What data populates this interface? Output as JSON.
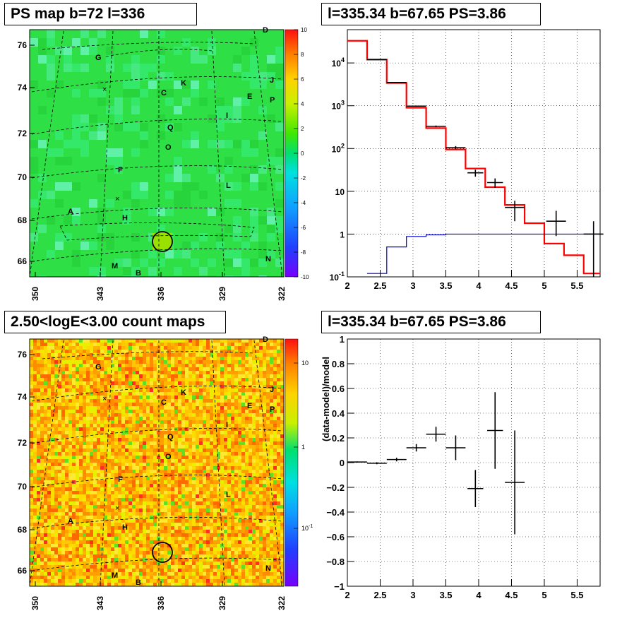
{
  "panels": {
    "map1_title": "PS map b=72 l=336",
    "spec_title": "l=335.34 b=67.65 PS=3.86",
    "map2_title": "2.50<logE<3.00 count maps",
    "resid_title": "l=335.34 b=67.65 PS=3.86"
  },
  "chart_data": [
    {
      "type": "heatmap",
      "title": "PS map b=72 l=336",
      "x_ticks": [
        "350",
        "343",
        "336",
        "329",
        "322"
      ],
      "y_ticks": [
        "76",
        "74",
        "72",
        "70",
        "68",
        "66"
      ],
      "colorbar_ticks": [
        "10",
        "8",
        "6",
        "4",
        "2",
        "0",
        "-2",
        "-4",
        "-6",
        "-8",
        "-10"
      ],
      "z_range": [
        -10,
        10
      ],
      "source_labels": [
        "D",
        "G",
        "K",
        "J",
        "C",
        "E",
        "P",
        "I",
        "Q",
        "O",
        "F",
        "L",
        "A",
        "H",
        "M",
        "B",
        "N"
      ]
    },
    {
      "type": "line",
      "title": "l=335.34 b=67.65 PS=3.86",
      "log_y": true,
      "xlim": [
        2,
        5.85
      ],
      "ylim": [
        0.1,
        60000
      ],
      "x_ticks": [
        "2",
        "2.5",
        "3",
        "3.5",
        "4",
        "4.5",
        "5",
        "5.5"
      ],
      "y_ticks": [
        "10^-1",
        "1",
        "10",
        "10^2",
        "10^3",
        "10^4"
      ],
      "series": [
        {
          "style": "histogram",
          "color": "#ff0000",
          "edges": [
            2,
            2.3,
            2.6,
            2.9,
            3.2,
            3.5,
            3.8,
            4.1,
            4.4,
            4.7,
            5.0,
            5.3,
            5.6,
            5.85
          ],
          "values": [
            33000,
            12000,
            3400,
            900,
            300,
            95,
            34,
            12.5,
            4.8,
            1.8,
            0.6,
            0.32,
            0.12
          ]
        },
        {
          "style": "histogram",
          "color": "#0000cc",
          "edges": [
            2.3,
            2.6,
            2.9,
            3.2,
            3.5,
            3.8,
            4.1,
            4.4,
            4.7,
            5.0,
            5.3,
            5.6,
            5.85
          ],
          "values": [
            0.12,
            0.5,
            0.88,
            0.96,
            1.0,
            1.0,
            1.0,
            1.0,
            1.0,
            1.0,
            1.0,
            1.0
          ]
        },
        {
          "style": "points",
          "color": "#000000",
          "x": [
            2.45,
            2.75,
            3.05,
            3.35,
            3.65,
            3.95,
            4.25,
            4.55,
            5.18,
            5.75
          ],
          "xerr": [
            0.15,
            0.15,
            0.15,
            0.15,
            0.15,
            0.12,
            0.12,
            0.15,
            0.15,
            0.15
          ],
          "y": [
            12000,
            3500,
            980,
            330,
            105,
            27,
            16,
            4.2,
            2.0,
            1.0
          ],
          "ylo": [
            11800,
            3400,
            950,
            315,
            96,
            22,
            12,
            2.0,
            0.9,
            0.1
          ],
          "yhi": [
            12200,
            3600,
            1010,
            345,
            114,
            32,
            20,
            6.0,
            3.5,
            2.0
          ]
        }
      ]
    },
    {
      "type": "heatmap",
      "title": "2.50<logE<3.00 count maps",
      "x_ticks": [
        "350",
        "343",
        "336",
        "329",
        "322"
      ],
      "y_ticks": [
        "76",
        "74",
        "72",
        "70",
        "68",
        "66"
      ],
      "colorbar_ticks": [
        "10",
        "1",
        "10^-1"
      ],
      "source_labels": [
        "D",
        "G",
        "K",
        "J",
        "C",
        "E",
        "P",
        "I",
        "Q",
        "O",
        "F",
        "L",
        "A",
        "H",
        "M",
        "B",
        "N"
      ]
    },
    {
      "type": "scatter",
      "title": "l=335.34 b=67.65 PS=3.86",
      "ylabel": "(data-model)/model",
      "xlim": [
        2,
        5.85
      ],
      "ylim": [
        -1,
        1
      ],
      "x_ticks": [
        "2",
        "2.5",
        "3",
        "3.5",
        "4",
        "4.5",
        "5",
        "5.5"
      ],
      "y_ticks": [
        "−1",
        "−0.8",
        "−0.6",
        "−0.4",
        "−0.2",
        "0",
        "0.2",
        "0.4",
        "0.6",
        "0.8",
        "1"
      ],
      "points": [
        {
          "x": 2.15,
          "xerr": 0.15,
          "y": 0.005,
          "yerr": 0.005
        },
        {
          "x": 2.45,
          "xerr": 0.15,
          "y": -0.005,
          "yerr": 0.008
        },
        {
          "x": 2.75,
          "xerr": 0.15,
          "y": 0.025,
          "yerr": 0.015
        },
        {
          "x": 3.05,
          "xerr": 0.15,
          "y": 0.12,
          "yerr": 0.03
        },
        {
          "x": 3.35,
          "xerr": 0.15,
          "y": 0.23,
          "yerr": 0.06
        },
        {
          "x": 3.65,
          "xerr": 0.15,
          "y": 0.12,
          "yerr": 0.1
        },
        {
          "x": 3.95,
          "xerr": 0.12,
          "y": -0.21,
          "yerr": 0.15
        },
        {
          "x": 4.25,
          "xerr": 0.12,
          "y": 0.26,
          "yerr": 0.31
        },
        {
          "x": 4.55,
          "xerr": 0.15,
          "y": -0.16,
          "yerr": 0.42
        }
      ]
    }
  ]
}
